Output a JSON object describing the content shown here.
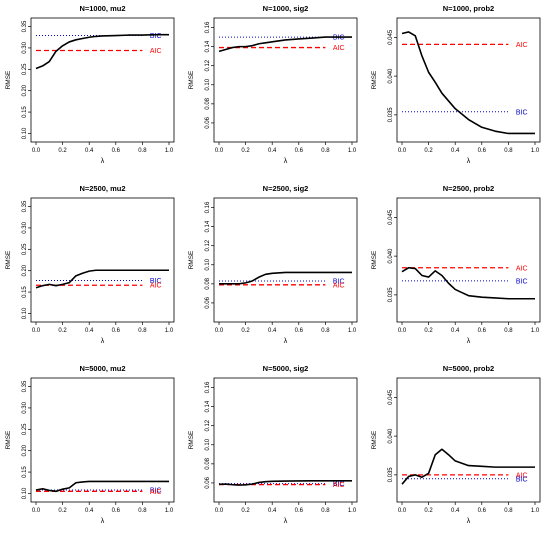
{
  "figure": {
    "colors": {
      "line": "#000000",
      "aic": "#ff0000",
      "bic": "#0000cc",
      "axis": "#000000"
    }
  },
  "chart_data": [
    {
      "type": "line",
      "title": "N=1000, mu2",
      "xlabel": "λ",
      "ylabel": "RMSE",
      "xlim": [
        0,
        1
      ],
      "ylim": [
        0.08,
        0.37
      ],
      "xticks": [
        "0.0",
        "0.2",
        "0.4",
        "0.6",
        "0.8",
        "1.0"
      ],
      "yticks": [
        "0.10",
        "0.15",
        "0.20",
        "0.25",
        "0.30",
        "0.35"
      ],
      "x": [
        0.0,
        0.05,
        0.1,
        0.15,
        0.2,
        0.25,
        0.3,
        0.35,
        0.4,
        0.45,
        0.5,
        0.6,
        0.7,
        0.8,
        0.9,
        1.0
      ],
      "series": [
        {
          "values": [
            0.252,
            0.258,
            0.268,
            0.292,
            0.305,
            0.314,
            0.319,
            0.322,
            0.325,
            0.327,
            0.328,
            0.329,
            0.33,
            0.33,
            0.331,
            0.331
          ]
        }
      ],
      "reference_lines": [
        {
          "label": "BIC",
          "value": 0.329,
          "style": "dotted"
        },
        {
          "label": "AIC",
          "value": 0.294,
          "style": "dashed"
        }
      ],
      "grid": false,
      "legend": "none"
    },
    {
      "type": "line",
      "title": "N=1000, sig2",
      "xlabel": "λ",
      "ylabel": "RMSE",
      "xlim": [
        0,
        1
      ],
      "ylim": [
        0.04,
        0.17
      ],
      "xticks": [
        "0.0",
        "0.2",
        "0.4",
        "0.6",
        "0.8",
        "1.0"
      ],
      "yticks": [
        "0.06",
        "0.08",
        "0.10",
        "0.12",
        "0.14",
        "0.16"
      ],
      "x": [
        0.0,
        0.05,
        0.1,
        0.15,
        0.2,
        0.25,
        0.3,
        0.35,
        0.4,
        0.5,
        0.6,
        0.7,
        0.8,
        0.9,
        1.0
      ],
      "series": [
        {
          "values": [
            0.135,
            0.137,
            0.139,
            0.14,
            0.14,
            0.141,
            0.143,
            0.144,
            0.145,
            0.147,
            0.148,
            0.149,
            0.15,
            0.15,
            0.15
          ]
        }
      ],
      "reference_lines": [
        {
          "label": "BIC",
          "value": 0.15,
          "style": "dotted"
        },
        {
          "label": "AIC",
          "value": 0.139,
          "style": "dashed"
        }
      ],
      "grid": false,
      "legend": "none"
    },
    {
      "type": "line",
      "title": "N=1000, prob2",
      "xlabel": "λ",
      "ylabel": "RMSE",
      "xlim": [
        0,
        1
      ],
      "ylim": [
        0.0315,
        0.0475
      ],
      "xticks": [
        "0.0",
        "0.2",
        "0.4",
        "0.6",
        "0.8",
        "1.0"
      ],
      "yticks": [
        "0.035",
        "0.040",
        "0.045"
      ],
      "x": [
        0.0,
        0.05,
        0.1,
        0.15,
        0.2,
        0.25,
        0.3,
        0.35,
        0.4,
        0.5,
        0.6,
        0.7,
        0.8,
        0.9,
        1.0
      ],
      "series": [
        {
          "values": [
            0.0455,
            0.0457,
            0.0452,
            0.0426,
            0.0405,
            0.0392,
            0.0378,
            0.0368,
            0.0358,
            0.0344,
            0.0334,
            0.0329,
            0.0326,
            0.0326,
            0.0326
          ]
        }
      ],
      "reference_lines": [
        {
          "label": "AIC",
          "value": 0.0441,
          "style": "dashed"
        },
        {
          "label": "BIC",
          "value": 0.0354,
          "style": "dotted"
        }
      ],
      "grid": false,
      "legend": "none"
    },
    {
      "type": "line",
      "title": "N=2500, mu2",
      "xlabel": "λ",
      "ylabel": "RMSE",
      "xlim": [
        0,
        1
      ],
      "ylim": [
        0.08,
        0.37
      ],
      "xticks": [
        "0.0",
        "0.2",
        "0.4",
        "0.6",
        "0.8",
        "1.0"
      ],
      "yticks": [
        "0.10",
        "0.15",
        "0.20",
        "0.25",
        "0.30",
        "0.35"
      ],
      "x": [
        0.0,
        0.05,
        0.1,
        0.15,
        0.2,
        0.25,
        0.3,
        0.35,
        0.4,
        0.45,
        0.5,
        0.6,
        0.7,
        0.8,
        0.9,
        1.0
      ],
      "series": [
        {
          "values": [
            0.16,
            0.165,
            0.168,
            0.165,
            0.168,
            0.172,
            0.188,
            0.194,
            0.199,
            0.201,
            0.201,
            0.201,
            0.201,
            0.201,
            0.201,
            0.201
          ]
        }
      ],
      "reference_lines": [
        {
          "label": "BIC",
          "value": 0.177,
          "style": "dotted"
        },
        {
          "label": "AIC",
          "value": 0.166,
          "style": "dashed"
        }
      ],
      "grid": false,
      "legend": "none"
    },
    {
      "type": "line",
      "title": "N=2500, sig2",
      "xlabel": "λ",
      "ylabel": "RMSE",
      "xlim": [
        0,
        1
      ],
      "ylim": [
        0.04,
        0.17
      ],
      "xticks": [
        "0.0",
        "0.2",
        "0.4",
        "0.6",
        "0.8",
        "1.0"
      ],
      "yticks": [
        "0.06",
        "0.08",
        "0.10",
        "0.12",
        "0.14",
        "0.16"
      ],
      "x": [
        0.0,
        0.05,
        0.1,
        0.15,
        0.2,
        0.25,
        0.3,
        0.35,
        0.4,
        0.5,
        0.6,
        0.7,
        0.8,
        0.9,
        1.0
      ],
      "series": [
        {
          "values": [
            0.08,
            0.08,
            0.08,
            0.08,
            0.081,
            0.083,
            0.087,
            0.09,
            0.091,
            0.092,
            0.092,
            0.092,
            0.092,
            0.092,
            0.092
          ]
        }
      ],
      "reference_lines": [
        {
          "label": "BIC",
          "value": 0.083,
          "style": "dotted"
        },
        {
          "label": "AIC",
          "value": 0.079,
          "style": "dashed"
        }
      ],
      "grid": false,
      "legend": "none"
    },
    {
      "type": "line",
      "title": "N=2500, prob2",
      "xlabel": "λ",
      "ylabel": "RMSE",
      "xlim": [
        0,
        1
      ],
      "ylim": [
        0.0315,
        0.0475
      ],
      "xticks": [
        "0.0",
        "0.2",
        "0.4",
        "0.6",
        "0.8",
        "1.0"
      ],
      "yticks": [
        "0.035",
        "0.040",
        "0.045"
      ],
      "x": [
        0.0,
        0.05,
        0.1,
        0.15,
        0.2,
        0.25,
        0.3,
        0.35,
        0.4,
        0.45,
        0.5,
        0.6,
        0.7,
        0.8,
        0.9,
        1.0
      ],
      "series": [
        {
          "values": [
            0.038,
            0.0385,
            0.0384,
            0.0375,
            0.0373,
            0.0381,
            0.0375,
            0.0365,
            0.0357,
            0.0353,
            0.0349,
            0.0347,
            0.0346,
            0.0345,
            0.0345,
            0.0345
          ]
        }
      ],
      "reference_lines": [
        {
          "label": "AIC",
          "value": 0.0385,
          "style": "dashed"
        },
        {
          "label": "BIC",
          "value": 0.0368,
          "style": "dotted"
        }
      ],
      "grid": false,
      "legend": "none"
    },
    {
      "type": "line",
      "title": "N=5000, mu2",
      "xlabel": "λ",
      "ylabel": "RMSE",
      "xlim": [
        0,
        1
      ],
      "ylim": [
        0.08,
        0.37
      ],
      "xticks": [
        "0.0",
        "0.2",
        "0.4",
        "0.6",
        "0.8",
        "1.0"
      ],
      "yticks": [
        "0.10",
        "0.15",
        "0.20",
        "0.25",
        "0.30",
        "0.35"
      ],
      "x": [
        0.0,
        0.05,
        0.1,
        0.15,
        0.2,
        0.25,
        0.3,
        0.35,
        0.4,
        0.5,
        0.6,
        0.7,
        0.8,
        0.9,
        1.0
      ],
      "series": [
        {
          "values": [
            0.108,
            0.111,
            0.107,
            0.105,
            0.11,
            0.113,
            0.125,
            0.127,
            0.128,
            0.128,
            0.128,
            0.128,
            0.128,
            0.128,
            0.128
          ]
        }
      ],
      "reference_lines": [
        {
          "label": "BIC",
          "value": 0.108,
          "style": "dotted"
        },
        {
          "label": "AIC",
          "value": 0.105,
          "style": "dashed"
        }
      ],
      "grid": false,
      "legend": "none"
    },
    {
      "type": "line",
      "title": "N=5000, sig2",
      "xlabel": "λ",
      "ylabel": "RMSE",
      "xlim": [
        0,
        1
      ],
      "ylim": [
        0.04,
        0.17
      ],
      "xticks": [
        "0.0",
        "0.2",
        "0.4",
        "0.6",
        "0.8",
        "1.0"
      ],
      "yticks": [
        "0.06",
        "0.08",
        "0.10",
        "0.12",
        "0.14",
        "0.16"
      ],
      "x": [
        0.0,
        0.05,
        0.1,
        0.15,
        0.2,
        0.25,
        0.3,
        0.35,
        0.4,
        0.5,
        0.6,
        0.7,
        0.8,
        0.9,
        1.0
      ],
      "series": [
        {
          "values": [
            0.0585,
            0.0588,
            0.0582,
            0.0578,
            0.058,
            0.0588,
            0.0605,
            0.0613,
            0.0617,
            0.062,
            0.0621,
            0.0622,
            0.0622,
            0.0622,
            0.0622
          ]
        }
      ],
      "reference_lines": [
        {
          "label": "BIC",
          "value": 0.0592,
          "style": "dotted"
        },
        {
          "label": "AIC",
          "value": 0.0583,
          "style": "dashed"
        }
      ],
      "grid": false,
      "legend": "none"
    },
    {
      "type": "line",
      "title": "N=5000, prob2",
      "xlabel": "λ",
      "ylabel": "RMSE",
      "xlim": [
        0,
        1
      ],
      "ylim": [
        0.0315,
        0.0475
      ],
      "xticks": [
        "0.0",
        "0.2",
        "0.4",
        "0.6",
        "0.8",
        "1.0"
      ],
      "yticks": [
        "0.035",
        "0.040",
        "0.045"
      ],
      "x": [
        0.0,
        0.05,
        0.1,
        0.15,
        0.2,
        0.25,
        0.3,
        0.35,
        0.4,
        0.45,
        0.5,
        0.6,
        0.7,
        0.8,
        0.9,
        1.0
      ],
      "series": [
        {
          "values": [
            0.0338,
            0.0348,
            0.035,
            0.0347,
            0.0352,
            0.0376,
            0.0383,
            0.0376,
            0.0368,
            0.0365,
            0.0362,
            0.0361,
            0.036,
            0.036,
            0.036,
            0.036
          ]
        }
      ],
      "reference_lines": [
        {
          "label": "AIC",
          "value": 0.035,
          "style": "dashed"
        },
        {
          "label": "BIC",
          "value": 0.0345,
          "style": "dotted"
        }
      ],
      "grid": false,
      "legend": "none"
    }
  ]
}
